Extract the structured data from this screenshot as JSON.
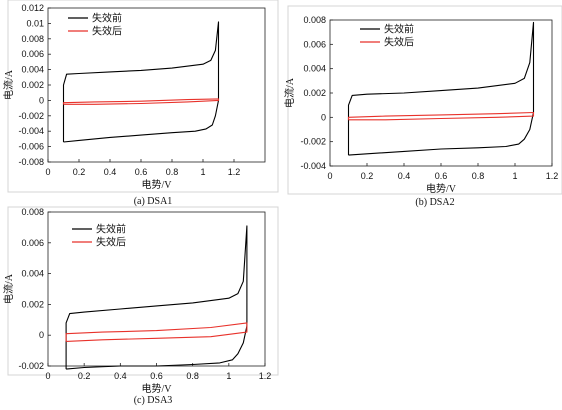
{
  "chart_data": [
    {
      "type": "line",
      "caption": "(a) DSA1",
      "xlabel": "电势/V",
      "ylabel": "电流/A",
      "xlim": [
        0,
        1.4
      ],
      "ylim": [
        -0.008,
        0.012
      ],
      "xticks": [
        "0",
        "0.2",
        "0.4",
        "0.6",
        "0.8",
        "1",
        "1.2"
      ],
      "yticks": [
        "-0.008",
        "-0.006",
        "-0.004",
        "-0.002",
        "0",
        "0.002",
        "0.004",
        "0.006",
        "0.008",
        "0.01",
        "0.012"
      ],
      "grid": false,
      "legend": "top-left",
      "series": [
        {
          "name": "失效前",
          "color": "#000000",
          "x": [
            0.1,
            0.2,
            0.4,
            0.6,
            0.8,
            0.95,
            1.02,
            1.06,
            1.08,
            1.1,
            1.1,
            1.08,
            1.05,
            1.0,
            0.8,
            0.6,
            0.4,
            0.2,
            0.12,
            0.1,
            0.1
          ],
          "y": [
            -0.0054,
            -0.0052,
            -0.0048,
            -0.0045,
            -0.0042,
            -0.004,
            -0.0037,
            -0.0032,
            -0.002,
            0.0,
            0.0102,
            0.0065,
            0.0052,
            0.0047,
            0.0042,
            0.0039,
            0.0037,
            0.0035,
            0.0034,
            0.002,
            -0.0054
          ]
        },
        {
          "name": "失效后",
          "color": "#e8322b",
          "x": [
            0.1,
            0.3,
            0.6,
            0.9,
            1.1,
            1.1,
            0.9,
            0.6,
            0.3,
            0.1,
            0.1
          ],
          "y": [
            -0.0005,
            -0.0005,
            -0.0004,
            -0.0002,
            0.0,
            0.0002,
            0.0001,
            -0.0001,
            -0.0002,
            -0.0003,
            -0.0005
          ]
        }
      ]
    },
    {
      "type": "line",
      "caption": "(b) DSA2",
      "xlabel": "电势/V",
      "ylabel": "电流/A",
      "xlim": [
        0,
        1.2
      ],
      "ylim": [
        -0.004,
        0.008
      ],
      "xticks": [
        "0",
        "0.2",
        "0.4",
        "0.6",
        "0.8",
        "1",
        "1.2"
      ],
      "yticks": [
        "-0.004",
        "-0.002",
        "0",
        "0.002",
        "0.004",
        "0.006",
        "0.008"
      ],
      "grid": false,
      "legend": "top-left",
      "series": [
        {
          "name": "失效前",
          "color": "#000000",
          "x": [
            0.1,
            0.2,
            0.4,
            0.6,
            0.8,
            0.95,
            1.02,
            1.05,
            1.08,
            1.1,
            1.1,
            1.08,
            1.05,
            1.0,
            0.8,
            0.6,
            0.4,
            0.2,
            0.12,
            0.1,
            0.1
          ],
          "y": [
            -0.0031,
            -0.003,
            -0.0028,
            -0.0026,
            -0.0025,
            -0.0024,
            -0.0022,
            -0.0018,
            -0.001,
            0.0004,
            0.0078,
            0.0045,
            0.0032,
            0.0028,
            0.0024,
            0.0022,
            0.002,
            0.0019,
            0.0018,
            0.001,
            -0.0031
          ]
        },
        {
          "name": "失效后",
          "color": "#e8322b",
          "x": [
            0.1,
            0.3,
            0.6,
            0.9,
            1.1,
            1.1,
            0.9,
            0.6,
            0.3,
            0.1,
            0.1
          ],
          "y": [
            -0.0002,
            -0.0002,
            -0.0001,
            0.0,
            0.0001,
            0.0004,
            0.0003,
            0.0002,
            0.0001,
            0.0,
            -0.0002
          ]
        }
      ]
    },
    {
      "type": "line",
      "caption": "(c) DSA3",
      "xlabel": "电势/V",
      "ylabel": "电流/A",
      "xlim": [
        0,
        1.2
      ],
      "ylim": [
        -0.002,
        0.008
      ],
      "xticks": [
        "0",
        "0.2",
        "0.4",
        "0.6",
        "0.8",
        "1",
        "1.2"
      ],
      "yticks": [
        "-0.002",
        "0",
        "0.002",
        "0.004",
        "0.006",
        "0.008"
      ],
      "grid": false,
      "legend": "top-left",
      "series": [
        {
          "name": "失效前",
          "color": "#000000",
          "x": [
            0.1,
            0.2,
            0.4,
            0.6,
            0.8,
            0.95,
            1.02,
            1.05,
            1.08,
            1.1,
            1.1,
            1.08,
            1.05,
            1.0,
            0.8,
            0.6,
            0.4,
            0.2,
            0.12,
            0.1,
            0.1
          ],
          "y": [
            -0.0022,
            -0.0021,
            -0.002,
            -0.002,
            -0.0019,
            -0.0018,
            -0.0016,
            -0.0012,
            -0.0005,
            0.0006,
            0.0071,
            0.0035,
            0.0027,
            0.0024,
            0.0021,
            0.0019,
            0.0017,
            0.0015,
            0.0014,
            0.0008,
            -0.0022
          ]
        },
        {
          "name": "失效后",
          "color": "#e8322b",
          "x": [
            0.1,
            0.3,
            0.6,
            0.9,
            1.1,
            1.1,
            0.9,
            0.6,
            0.3,
            0.1,
            0.1
          ],
          "y": [
            -0.0004,
            -0.0003,
            -0.0002,
            -0.0001,
            0.0002,
            0.0008,
            0.0005,
            0.0003,
            0.0002,
            0.0001,
            -0.0004
          ]
        }
      ]
    }
  ]
}
